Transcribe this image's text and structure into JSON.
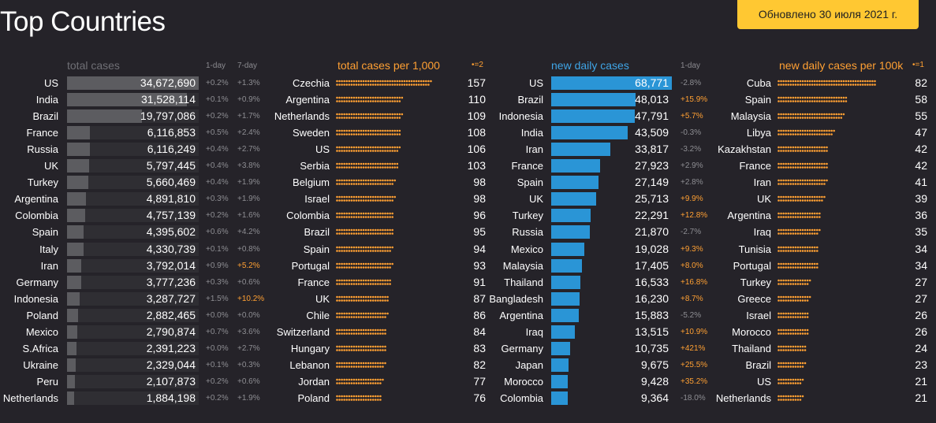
{
  "page": {
    "title": "Top Countries",
    "updated": "Обновлено 30 июля 2021 г."
  },
  "colors": {
    "background": "#252329",
    "grey_bar": "#5c5c60",
    "orange": "#ffa033",
    "blue": "#2a95d6",
    "badge": "#ffc832"
  },
  "chart_data": [
    {
      "type": "bar",
      "title": "total cases",
      "columns": [
        "1-day",
        "7-day"
      ],
      "categories": [
        "US",
        "India",
        "Brazil",
        "France",
        "Russia",
        "UK",
        "Turkey",
        "Argentina",
        "Colombia",
        "Spain",
        "Italy",
        "Iran",
        "Germany",
        "Indonesia",
        "Poland",
        "Mexico",
        "S.Africa",
        "Ukraine",
        "Peru",
        "Netherlands"
      ],
      "values": [
        34672690,
        31528114,
        19797086,
        6116853,
        6116249,
        5797445,
        5660469,
        4891810,
        4757139,
        4395602,
        4330739,
        3792014,
        3777236,
        3287727,
        2882465,
        2790874,
        2391223,
        2329044,
        2107873,
        1884198
      ],
      "labels": [
        "34,672,690",
        "31,528,114",
        "19,797,086",
        "6,116,853",
        "6,116,249",
        "5,797,445",
        "5,660,469",
        "4,891,810",
        "4,757,139",
        "4,395,602",
        "4,330,739",
        "3,792,014",
        "3,777,236",
        "3,287,727",
        "2,882,465",
        "2,790,874",
        "2,391,223",
        "2,329,044",
        "2,107,873",
        "1,884,198"
      ],
      "change_1day": [
        "+0.2%",
        "+0.1%",
        "+0.2%",
        "+0.5%",
        "+0.4%",
        "+0.4%",
        "+0.4%",
        "+0.3%",
        "+0.2%",
        "+0.6%",
        "+0.1%",
        "+0.9%",
        "+0.3%",
        "+1.5%",
        "+0.0%",
        "+0.7%",
        "+0.0%",
        "+0.1%",
        "+0.2%",
        "+0.2%"
      ],
      "change_7day": [
        "+1.3%",
        "+0.9%",
        "+1.7%",
        "+2.4%",
        "+2.7%",
        "+3.8%",
        "+1.9%",
        "+1.9%",
        "+1.6%",
        "+4.2%",
        "+0.8%",
        "+5.2%",
        "+0.6%",
        "+10.2%",
        "+0.0%",
        "+3.6%",
        "+2.7%",
        "+0.3%",
        "+0.6%",
        "+1.9%"
      ]
    },
    {
      "type": "bar",
      "title": "total cases per 1,000",
      "legend": "•=2",
      "categories": [
        "Czechia",
        "Argentina",
        "Netherlands",
        "Sweden",
        "US",
        "Serbia",
        "Belgium",
        "Israel",
        "Colombia",
        "Brazil",
        "Spain",
        "Portugal",
        "France",
        "UK",
        "Chile",
        "Switzerland",
        "Hungary",
        "Lebanon",
        "Jordan",
        "Poland"
      ],
      "values": [
        157,
        110,
        109,
        108,
        106,
        103,
        98,
        98,
        96,
        95,
        94,
        93,
        91,
        87,
        86,
        84,
        83,
        82,
        77,
        76
      ]
    },
    {
      "type": "bar",
      "title": "new daily cases",
      "columns": [
        "1-day"
      ],
      "categories": [
        "US",
        "Brazil",
        "Indonesia",
        "India",
        "Iran",
        "France",
        "Spain",
        "UK",
        "Turkey",
        "Russia",
        "Mexico",
        "Malaysia",
        "Thailand",
        "Bangladesh",
        "Argentina",
        "Iraq",
        "Germany",
        "Japan",
        "Morocco",
        "Colombia"
      ],
      "values": [
        68771,
        48013,
        47791,
        43509,
        33817,
        27923,
        27149,
        25713,
        22291,
        21870,
        19028,
        17405,
        16533,
        16230,
        15883,
        13515,
        10735,
        9675,
        9428,
        9364
      ],
      "labels": [
        "68,771",
        "48,013",
        "47,791",
        "43,509",
        "33,817",
        "27,923",
        "27,149",
        "25,713",
        "22,291",
        "21,870",
        "19,028",
        "17,405",
        "16,533",
        "16,230",
        "15,883",
        "13,515",
        "10,735",
        "9,675",
        "9,428",
        "9,364"
      ],
      "change_1day": [
        "-2.8%",
        "+15.9%",
        "+5.7%",
        "-0.3%",
        "-3.2%",
        "+2.9%",
        "+2.8%",
        "+9.9%",
        "+12.8%",
        "-2.7%",
        "+9.3%",
        "+8.0%",
        "+16.8%",
        "+8.7%",
        "-5.2%",
        "+10.9%",
        "+421%",
        "+25.5%",
        "+35.2%",
        "-18.0%"
      ]
    },
    {
      "type": "bar",
      "title": "new daily cases per 100k",
      "legend": "•=1",
      "categories": [
        "Cuba",
        "Spain",
        "Malaysia",
        "Libya",
        "Kazakhstan",
        "France",
        "Iran",
        "UK",
        "Argentina",
        "Iraq",
        "Tunisia",
        "Portugal",
        "Turkey",
        "Greece",
        "Israel",
        "Morocco",
        "Thailand",
        "Brazil",
        "US",
        "Netherlands"
      ],
      "values": [
        82,
        58,
        55,
        47,
        42,
        42,
        41,
        39,
        36,
        35,
        34,
        34,
        27,
        27,
        26,
        26,
        24,
        23,
        21,
        21
      ]
    }
  ]
}
